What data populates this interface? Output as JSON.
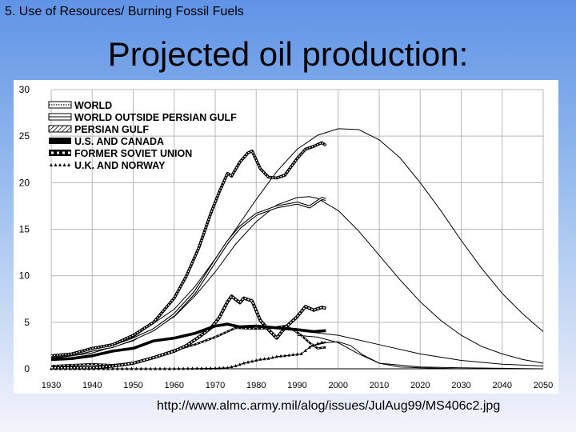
{
  "header": {
    "section_label": "5. Use of Resources/ Burning Fossil Fuels",
    "title": "Projected oil production:"
  },
  "footer": {
    "source_url": "http://www.almc.army.mil/alog/issues/JulAug99/MS406c2.jpg"
  },
  "chart_data": {
    "type": "line",
    "title": "",
    "xlabel": "",
    "ylabel": "",
    "xlim": [
      1930,
      2050
    ],
    "ylim": [
      0,
      30
    ],
    "x_ticks": [
      1930,
      1940,
      1950,
      1960,
      1970,
      1980,
      1990,
      2000,
      2010,
      2020,
      2030,
      2040,
      2050
    ],
    "y_ticks": [
      0,
      5,
      10,
      15,
      20,
      25,
      30
    ],
    "grid": true,
    "legend_position": "top-left",
    "series": [
      {
        "name": "WORLD",
        "style": "dotted-heavy",
        "x": [
          1930,
          1935,
          1940,
          1945,
          1950,
          1955,
          1960,
          1963,
          1966,
          1969,
          1971,
          1973,
          1974,
          1976,
          1978,
          1979,
          1981,
          1983,
          1985,
          1987,
          1990,
          1992,
          1994,
          1996,
          1997
        ],
        "y": [
          1.4,
          1.6,
          2.2,
          2.6,
          3.6,
          5.0,
          7.6,
          10.0,
          13.0,
          16.8,
          19.0,
          21.0,
          20.7,
          22.2,
          23.2,
          23.4,
          21.5,
          20.6,
          20.5,
          20.8,
          22.6,
          23.6,
          23.9,
          24.3,
          24.0
        ]
      },
      {
        "name": "WORLD OUTSIDE PERSIAN GULF",
        "style": "double",
        "x": [
          1930,
          1935,
          1940,
          1945,
          1950,
          1955,
          1960,
          1965,
          1970,
          1973,
          1976,
          1980,
          1985,
          1990,
          1993,
          1996,
          1997
        ],
        "y": [
          1.3,
          1.5,
          2.0,
          2.4,
          3.2,
          4.2,
          5.8,
          8.2,
          11.6,
          13.6,
          15.2,
          16.6,
          17.4,
          17.8,
          17.4,
          18.3,
          18.2
        ]
      },
      {
        "name": "PERSIAN GULF",
        "style": "hatched",
        "x": [
          1930,
          1940,
          1945,
          1950,
          1955,
          1960,
          1963,
          1966,
          1969,
          1971,
          1973,
          1974,
          1976,
          1977,
          1979,
          1981,
          1983,
          1985,
          1987,
          1989,
          1990,
          1992,
          1994,
          1996,
          1997
        ],
        "y": [
          0.1,
          0.1,
          0.3,
          0.6,
          1.2,
          1.9,
          2.5,
          3.4,
          4.4,
          5.5,
          7.2,
          7.8,
          7.1,
          7.6,
          7.3,
          5.2,
          4.2,
          3.3,
          4.4,
          5.2,
          5.6,
          6.7,
          6.3,
          6.6,
          6.5
        ]
      },
      {
        "name": "U.S. AND CANADA",
        "style": "solid-heavy",
        "x": [
          1930,
          1935,
          1940,
          1945,
          1950,
          1955,
          1960,
          1965,
          1970,
          1973,
          1976,
          1980,
          1985,
          1990,
          1994,
          1997
        ],
        "y": [
          1.0,
          1.1,
          1.4,
          1.9,
          2.2,
          3.0,
          3.3,
          3.8,
          4.6,
          4.8,
          4.5,
          4.6,
          4.4,
          4.2,
          4.0,
          4.1
        ]
      },
      {
        "name": "FORMER SOVIET UNION",
        "style": "square-dots",
        "x": [
          1930,
          1935,
          1940,
          1945,
          1950,
          1955,
          1960,
          1965,
          1970,
          1975,
          1980,
          1984,
          1987,
          1989,
          1991,
          1993,
          1995,
          1997
        ],
        "y": [
          0.3,
          0.4,
          0.5,
          0.4,
          0.6,
          1.2,
          2.0,
          2.6,
          3.4,
          4.4,
          4.3,
          4.4,
          4.6,
          4.2,
          3.6,
          2.8,
          2.2,
          2.3
        ]
      },
      {
        "name": "U.K. AND NORWAY",
        "style": "triangles",
        "x": [
          1930,
          1960,
          1970,
          1973,
          1975,
          1977,
          1979,
          1981,
          1983,
          1985,
          1987,
          1989,
          1991,
          1993,
          1995,
          1997
        ],
        "y": [
          0.0,
          0.0,
          0.05,
          0.1,
          0.3,
          0.6,
          0.8,
          1.0,
          1.1,
          1.3,
          1.4,
          1.5,
          1.6,
          2.3,
          2.7,
          2.9
        ]
      }
    ],
    "projections": [
      {
        "x": [
          1930,
          1940,
          1950,
          1960,
          1965,
          1970,
          1975,
          1980,
          1985,
          1990,
          1995,
          2000,
          2005,
          2010,
          2015,
          2020,
          2025,
          2030,
          2035,
          2040,
          2045,
          2050
        ],
        "y": [
          1.2,
          1.9,
          3.4,
          6.4,
          8.8,
          11.8,
          15.0,
          18.2,
          21.2,
          23.6,
          25.1,
          25.8,
          25.7,
          24.6,
          22.7,
          20.0,
          17.0,
          13.8,
          10.8,
          8.1,
          5.9,
          4.0
        ]
      },
      {
        "x": [
          1930,
          1940,
          1950,
          1960,
          1965,
          1970,
          1975,
          1980,
          1985,
          1990,
          1993,
          1995,
          2000,
          2005,
          2010,
          2015,
          2020,
          2025,
          2030,
          2035,
          2040,
          2045,
          2050
        ],
        "y": [
          1.1,
          1.7,
          3.0,
          5.6,
          7.8,
          10.4,
          13.4,
          15.8,
          17.6,
          18.4,
          18.5,
          18.3,
          17.0,
          14.8,
          12.2,
          9.6,
          7.2,
          5.2,
          3.6,
          2.4,
          1.6,
          1.0,
          0.6
        ]
      },
      {
        "x": [
          1990,
          2000,
          2010,
          2020,
          2030,
          2040,
          2050
        ],
        "y": [
          4.1,
          3.6,
          2.6,
          1.6,
          0.9,
          0.5,
          0.3
        ]
      },
      {
        "x": [
          1990,
          1995,
          2000,
          2005,
          2010,
          2020,
          2030,
          2040,
          2050
        ],
        "y": [
          3.6,
          3.4,
          2.8,
          1.6,
          0.6,
          0.2,
          0.1,
          0.05,
          0.0
        ]
      },
      {
        "x": [
          1993,
          1997,
          2000,
          2003,
          2006,
          2010,
          2015,
          2020,
          2030,
          2040,
          2050
        ],
        "y": [
          2.4,
          2.8,
          2.9,
          2.5,
          1.5,
          0.6,
          0.2,
          0.1,
          0.0,
          0.0,
          0.0
        ]
      }
    ]
  }
}
